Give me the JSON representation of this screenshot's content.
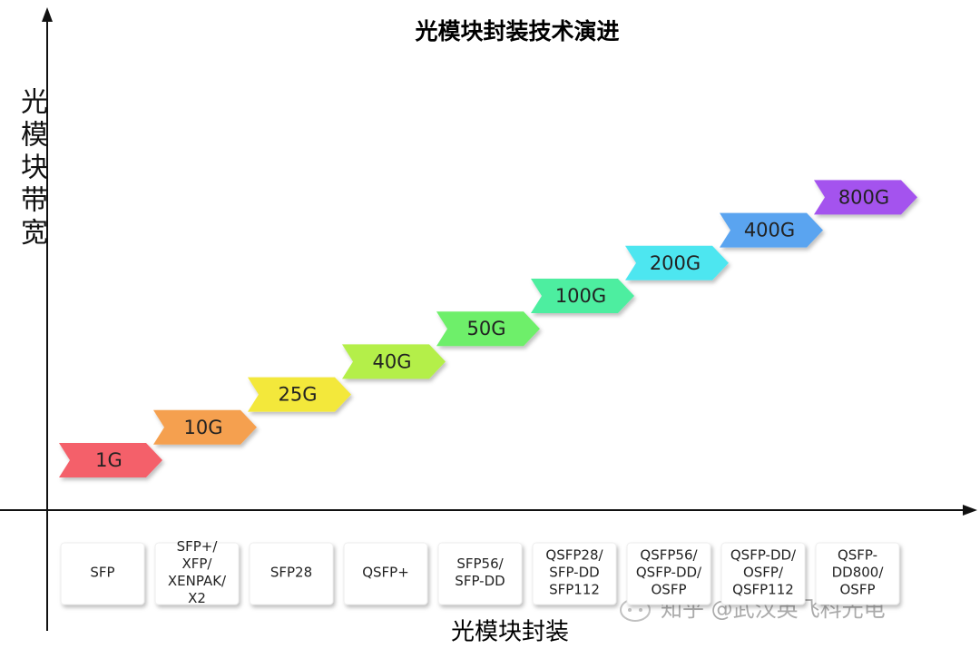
{
  "title": "光模块封装技术演进",
  "y_axis_label": "光模块带宽",
  "x_axis_label": "光模块封装",
  "steps": [
    {
      "speed": "1G",
      "color": "#f4606b",
      "package": [
        "SFP"
      ]
    },
    {
      "speed": "10G",
      "color": "#f5a050",
      "package": [
        "SFP+/",
        "XFP/",
        "XENPAK/",
        "X2"
      ]
    },
    {
      "speed": "25G",
      "color": "#f3e83a",
      "package": [
        "SFP28"
      ]
    },
    {
      "speed": "40G",
      "color": "#b4ef4a",
      "package": [
        "QSFP+"
      ]
    },
    {
      "speed": "50G",
      "color": "#6eef6a",
      "package": [
        "SFP56/",
        "SFP-DD"
      ]
    },
    {
      "speed": "100G",
      "color": "#4eeea0",
      "package": [
        "QSFP28/",
        "SFP-DD",
        "SFP112"
      ]
    },
    {
      "speed": "200G",
      "color": "#4ee6f0",
      "package": [
        "QSFP56/",
        "QSFP-DD/",
        "OSFP"
      ]
    },
    {
      "speed": "400G",
      "color": "#5aa4f0",
      "package": [
        "QSFP-DD/",
        "OSFP/",
        "QSFP112"
      ]
    },
    {
      "speed": "800G",
      "color": "#a452ee",
      "package": [
        "QSFP-",
        "DD800/",
        "OSFP"
      ]
    }
  ],
  "watermark": "知乎 @武汉英飞科光电"
}
